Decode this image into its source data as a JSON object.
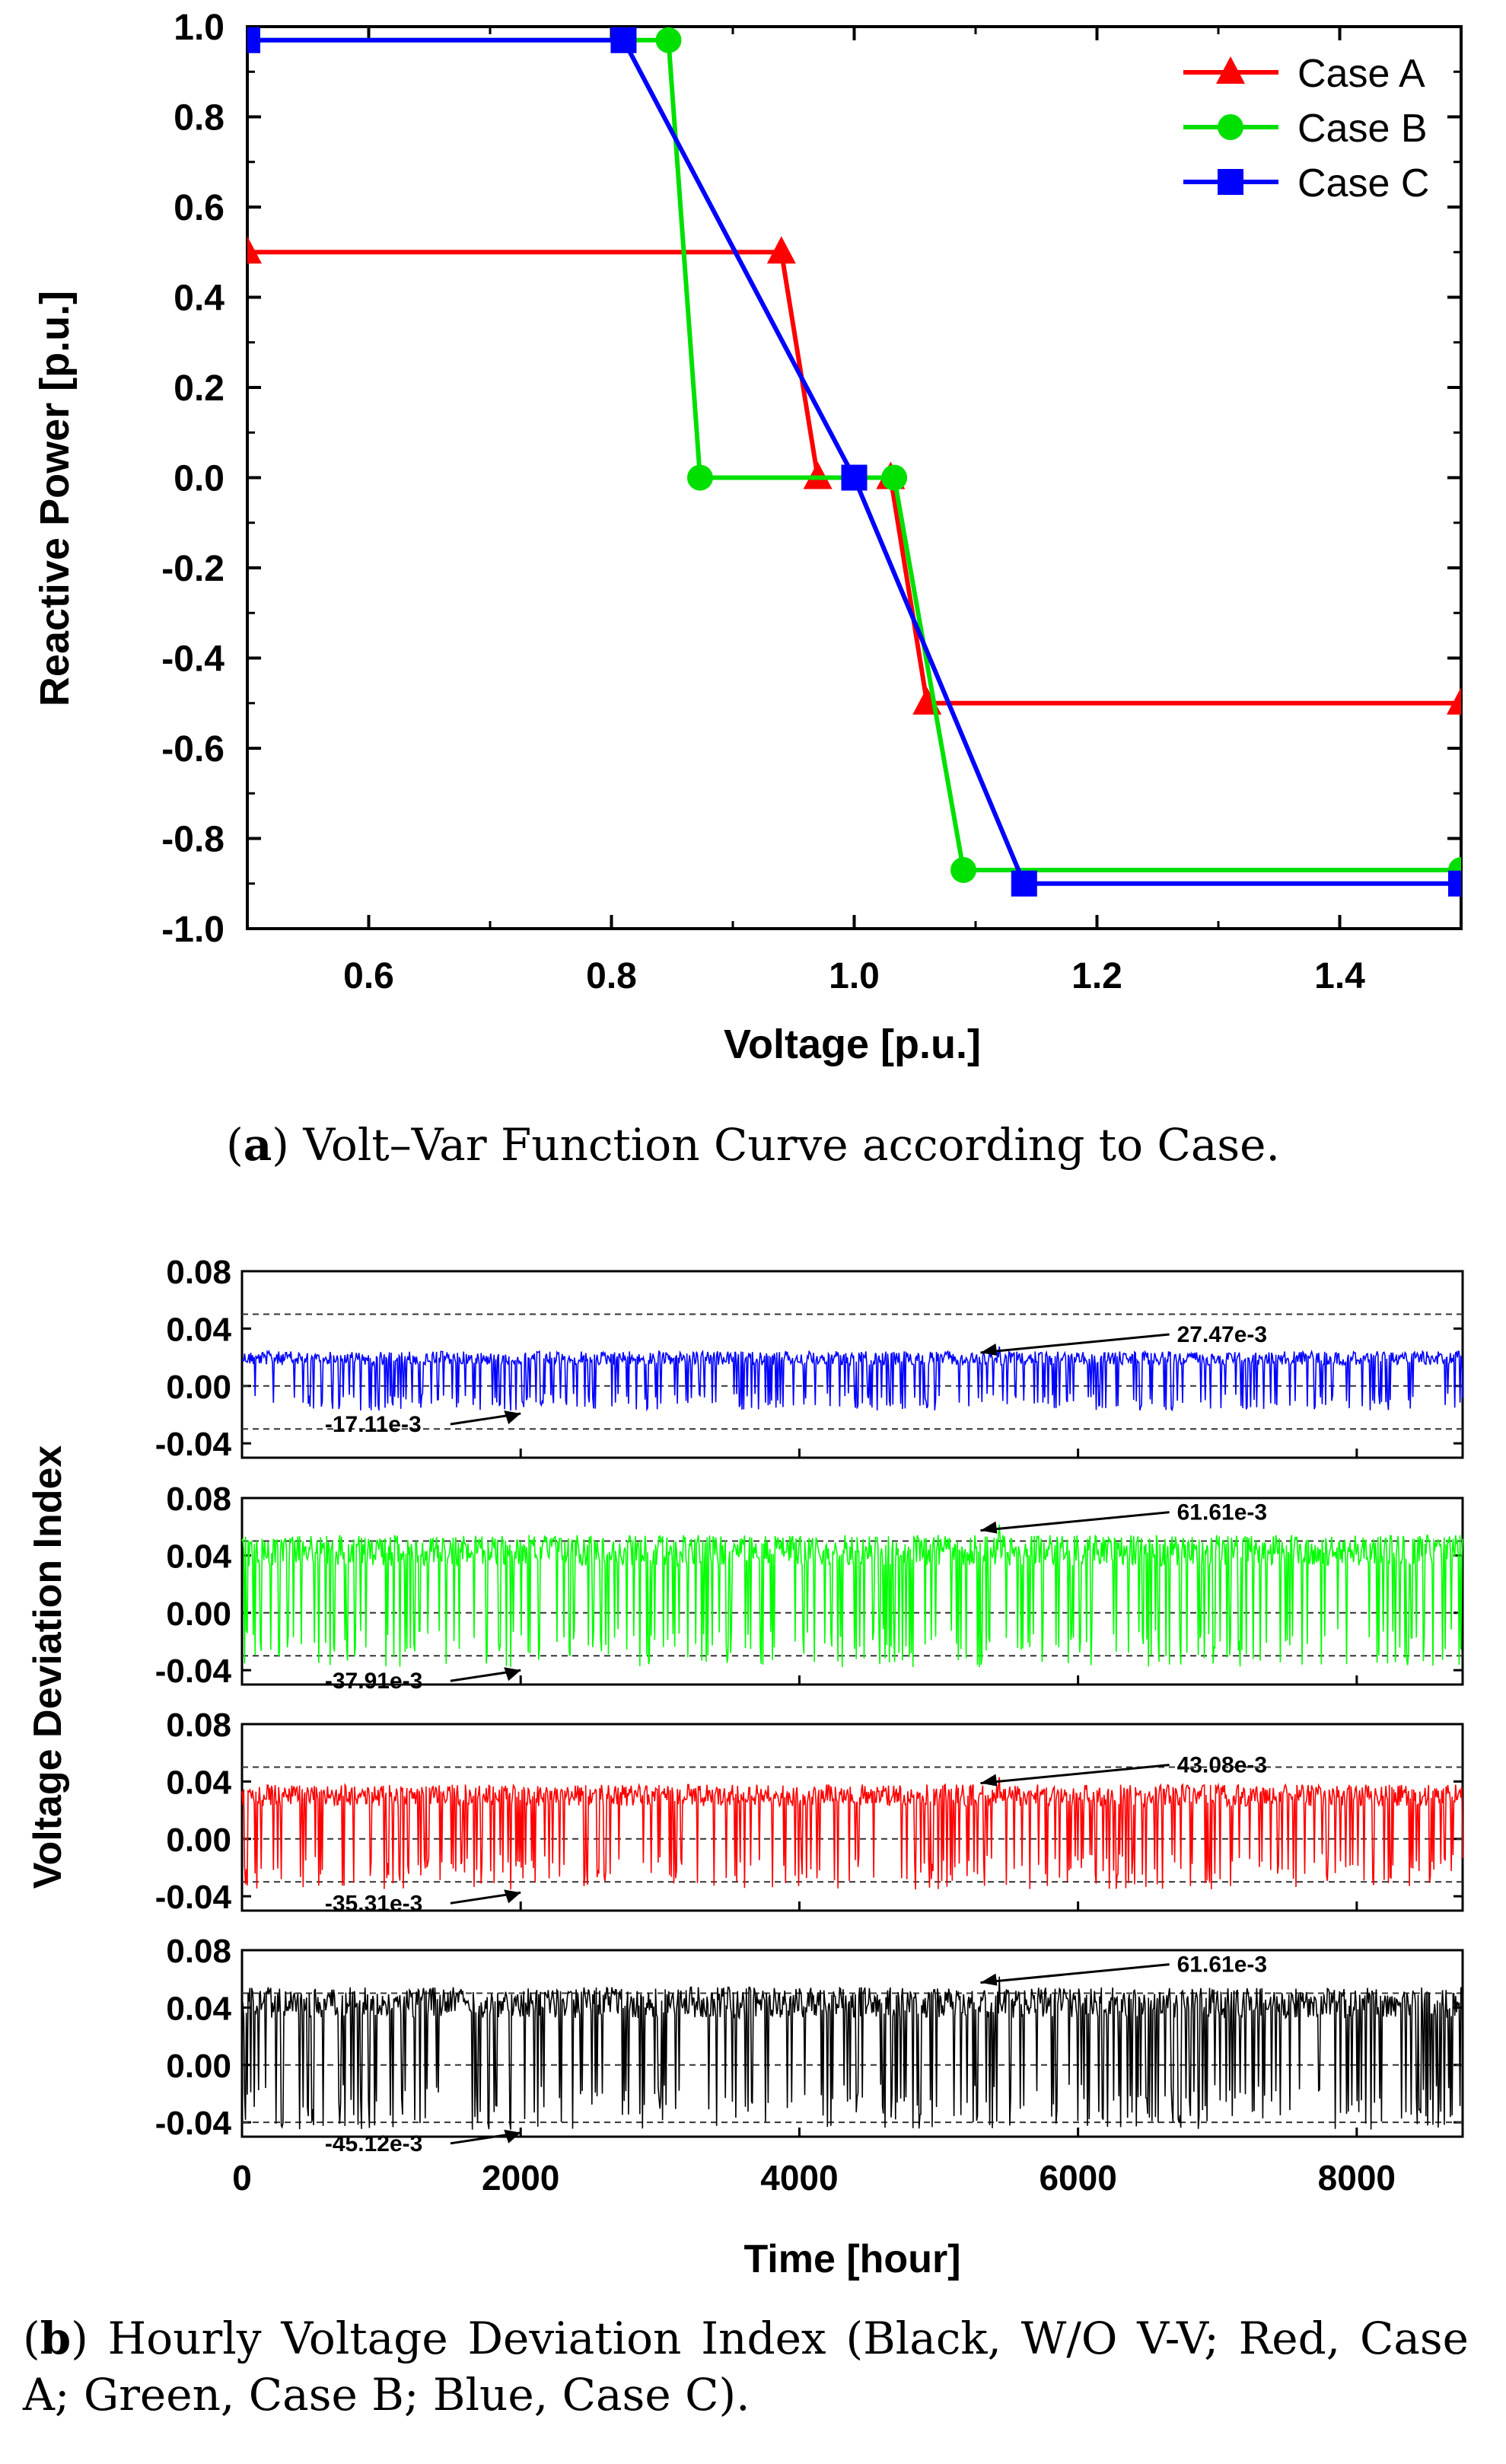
{
  "chart_data": [
    {
      "id": "a",
      "type": "line",
      "xlabel": "Voltage [p.u.]",
      "ylabel": "Reactive Power [p.u.]",
      "xlim": [
        0.5,
        1.5
      ],
      "ylim": [
        -1.0,
        1.0
      ],
      "x_ticks": [
        "0.6",
        "0.8",
        "1.0",
        "1.2",
        "1.4"
      ],
      "y_ticks": [
        "1.0",
        "0.8",
        "0.6",
        "0.4",
        "0.2",
        "0.0",
        "-0.2",
        "-0.4",
        "-0.6",
        "-0.8",
        "-1.0"
      ],
      "legend_position": "top-right",
      "series": [
        {
          "name": "Case A",
          "color": "#ff0000",
          "marker": "triangle",
          "points": [
            [
              0.5,
              0.5
            ],
            [
              0.94,
              0.5
            ],
            [
              0.97,
              0.0
            ],
            [
              1.03,
              0.0
            ],
            [
              1.06,
              -0.5
            ],
            [
              1.5,
              -0.5
            ]
          ]
        },
        {
          "name": "Case B",
          "color": "#00e000",
          "marker": "circle",
          "points": [
            [
              0.5,
              0.97
            ],
            [
              0.847,
              0.97
            ],
            [
              0.873,
              0.0
            ],
            [
              1.033,
              0.0
            ],
            [
              1.09,
              -0.87
            ],
            [
              1.5,
              -0.87
            ]
          ]
        },
        {
          "name": "Case C",
          "color": "#0000ff",
          "marker": "square",
          "points": [
            [
              0.5,
              0.97
            ],
            [
              0.81,
              0.97
            ],
            [
              1.0,
              0.0
            ],
            [
              1.14,
              -0.9
            ],
            [
              1.5,
              -0.9
            ]
          ]
        }
      ]
    },
    {
      "id": "b",
      "type": "line",
      "xlabel": "Time [hour]",
      "ylabel": "Voltage Deviation Index",
      "xlim": [
        0,
        8760
      ],
      "x_ticks": [
        "0",
        "2000",
        "4000",
        "6000",
        "8000"
      ],
      "y_ticks": [
        "0.08",
        "0.04",
        "0.00",
        "-0.04"
      ],
      "ylim": [
        -0.05,
        0.08
      ],
      "panels": [
        {
          "name": "Case C",
          "color": "#0000ff",
          "max": 0.02747,
          "min": -0.01711,
          "max_label": "27.47e-3",
          "min_label": "-17.11e-3",
          "dashed_levels": [
            0.05,
            0.0,
            -0.03
          ]
        },
        {
          "name": "Case B",
          "color": "#00ff00",
          "max": 0.06161,
          "min": -0.03791,
          "max_label": "61.61e-3",
          "min_label": "-37.91e-3",
          "dashed_levels": [
            0.05,
            0.0,
            -0.03
          ]
        },
        {
          "name": "Case A",
          "color": "#ff0000",
          "max": 0.04308,
          "min": -0.03531,
          "max_label": "43.08e-3",
          "min_label": "-35.31e-3",
          "dashed_levels": [
            0.05,
            0.0,
            -0.03
          ]
        },
        {
          "name": "W/O V-V",
          "color": "#000000",
          "max": 0.06161,
          "min": -0.04512,
          "max_label": "61.61e-3",
          "min_label": "-45.12e-3",
          "dashed_levels": [
            0.05,
            0.0,
            -0.04
          ]
        }
      ]
    }
  ],
  "captions": {
    "a_letter": "a",
    "a_text": "Volt–Var Function Curve according to Case.",
    "b_letter": "b",
    "b_text": "Hourly Voltage Deviation Index (Black, W/O V-V; Red, Case A; Green, Case B; Blue, Case C)."
  }
}
